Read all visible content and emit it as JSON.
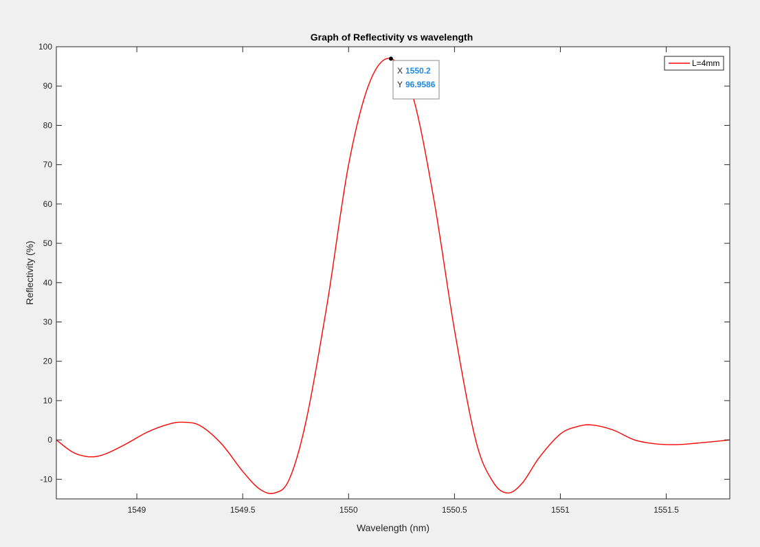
{
  "chart_data": {
    "type": "line",
    "title": "Graph of Reflectivity vs wavelength",
    "xlabel": "Wavelength (nm)",
    "ylabel": "Reflectivity (%)",
    "xlim": [
      1548.62,
      1551.8
    ],
    "ylim": [
      -15,
      100
    ],
    "x_ticks": [
      1549,
      1549.5,
      1550,
      1550.5,
      1551,
      1551.5
    ],
    "x_tick_labels": [
      "1549",
      "1549.5",
      "1550",
      "1550.5",
      "1551",
      "1551.5"
    ],
    "y_ticks": [
      -10,
      0,
      10,
      20,
      30,
      40,
      50,
      60,
      70,
      80,
      90,
      100
    ],
    "y_tick_labels": [
      "-10",
      "0",
      "10",
      "20",
      "30",
      "40",
      "50",
      "60",
      "70",
      "80",
      "90",
      "100"
    ],
    "grid": false,
    "legend_position": "top-right",
    "series": [
      {
        "name": "L=4mm",
        "color": "#ff0000",
        "x": [
          1548.62,
          1548.7,
          1548.78,
          1548.85,
          1548.95,
          1549.05,
          1549.15,
          1549.22,
          1549.3,
          1549.4,
          1549.5,
          1549.58,
          1549.65,
          1549.72,
          1549.8,
          1549.9,
          1550.0,
          1550.1,
          1550.2,
          1550.3,
          1550.4,
          1550.5,
          1550.6,
          1550.68,
          1550.75,
          1550.82,
          1550.9,
          1551.0,
          1551.08,
          1551.15,
          1551.25,
          1551.35,
          1551.45,
          1551.55,
          1551.65,
          1551.8
        ],
        "y": [
          0,
          -3.2,
          -4.3,
          -3.6,
          -1.0,
          2.0,
          4.0,
          4.5,
          3.6,
          -1.0,
          -8.0,
          -12.5,
          -13.5,
          -10.0,
          5.0,
          35.0,
          70.0,
          91.0,
          96.96,
          88.0,
          62.0,
          28.0,
          0.0,
          -10.5,
          -13.5,
          -11.0,
          -4.5,
          1.5,
          3.4,
          3.8,
          2.5,
          0.0,
          -1.0,
          -1.2,
          -0.8,
          0.0
        ]
      }
    ],
    "datatip": {
      "x_key": "X",
      "x_value": "1550.2",
      "y_key": "Y",
      "y_value": "96.9586",
      "at_x": 1550.2,
      "at_y": 96.9586
    }
  }
}
